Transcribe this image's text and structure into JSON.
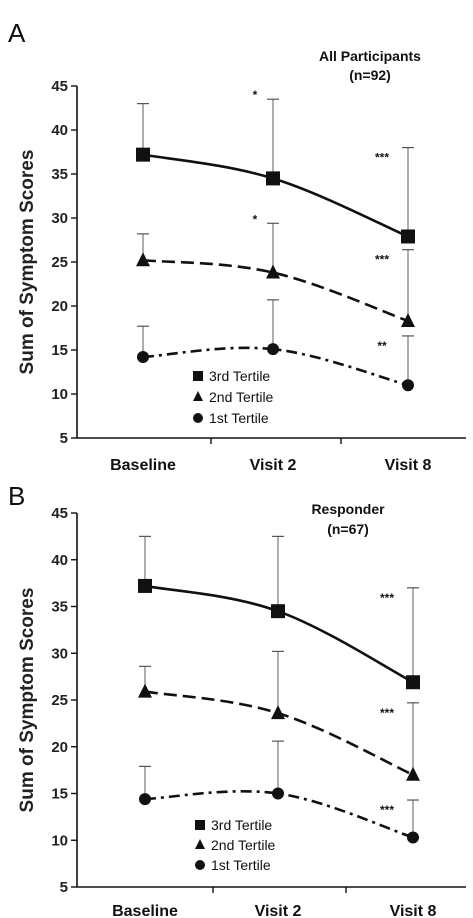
{
  "chart_data": [
    {
      "type": "line",
      "panel_label": "A",
      "title": "All Participants",
      "subtitle": "(n=92)",
      "xlabel": "",
      "ylabel": "Sum of  Symptom Scores",
      "categories": [
        "Baseline",
        "Visit 2",
        "Visit 8"
      ],
      "ylim": [
        5,
        45
      ],
      "yticks": [
        "5",
        "10",
        "15",
        "20",
        "25",
        "30",
        "35",
        "40",
        "45"
      ],
      "grid": false,
      "legend_position": "bottom-center",
      "series": [
        {
          "name": "3rd Tertile",
          "marker": "square",
          "line": "solid",
          "values": [
            37.2,
            34.5,
            27.9
          ],
          "error_upper": [
            43.0,
            43.5,
            38.0
          ],
          "significance": [
            "",
            "*",
            "***"
          ]
        },
        {
          "name": "2nd Tertile",
          "marker": "triangle",
          "line": "dashed",
          "values": [
            25.2,
            23.8,
            18.3
          ],
          "error_upper": [
            28.2,
            29.4,
            26.4
          ],
          "significance": [
            "",
            "*",
            "***"
          ]
        },
        {
          "name": "1st Tertile",
          "marker": "circle",
          "line": "dash-dot",
          "values": [
            14.2,
            15.1,
            11.0
          ],
          "error_upper": [
            17.7,
            20.7,
            16.6
          ],
          "significance": [
            "",
            "",
            "**"
          ]
        }
      ]
    },
    {
      "type": "line",
      "panel_label": "B",
      "title": "Responder",
      "subtitle": "(n=67)",
      "xlabel": "",
      "ylabel": "Sum of  Symptom Scores",
      "categories": [
        "Baseline",
        "Visit 2",
        "Visit 8"
      ],
      "ylim": [
        5,
        45
      ],
      "yticks": [
        "5",
        "10",
        "15",
        "20",
        "25",
        "30",
        "35",
        "40",
        "45"
      ],
      "grid": false,
      "legend_position": "bottom-center",
      "series": [
        {
          "name": "3rd Tertile",
          "marker": "square",
          "line": "solid",
          "values": [
            37.2,
            34.5,
            26.9
          ],
          "error_upper": [
            42.5,
            42.5,
            37.0
          ],
          "significance": [
            "",
            "",
            "***"
          ]
        },
        {
          "name": "2nd Tertile",
          "marker": "triangle",
          "line": "dashed",
          "values": [
            25.9,
            23.6,
            17.0
          ],
          "error_upper": [
            28.6,
            30.2,
            24.7
          ],
          "significance": [
            "",
            "",
            "***"
          ]
        },
        {
          "name": "1st Tertile",
          "marker": "circle",
          "line": "dash-dot",
          "values": [
            14.4,
            15.0,
            10.3
          ],
          "error_upper": [
            17.9,
            20.6,
            14.3
          ],
          "significance": [
            "",
            "",
            "***"
          ]
        }
      ]
    }
  ]
}
